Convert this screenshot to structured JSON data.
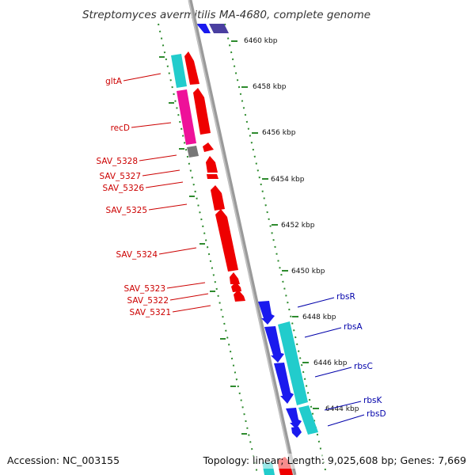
{
  "title": "Streptomyces avermitilis MA-4680, complete genome",
  "footer": {
    "accession": "Accession: NC_003155",
    "topology": "Topology: linear; Length: 9,025,608 bp; Genes: 7,669"
  },
  "colors": {
    "backbone": "#8c8c8c",
    "tick_green": "#2e8b2e",
    "red_gene": "#ee0000",
    "blue_gene": "#1a1aee",
    "cyan_gene": "#22cccc",
    "magenta_gene": "#ee1199",
    "grey_gene": "#777777",
    "red_label": "#cc0000",
    "blue_label": "#0000aa"
  },
  "kbp_ticks": [
    "6460 kbp",
    "6458 kbp",
    "6456 kbp",
    "6454 kbp",
    "6452 kbp",
    "6450 kbp",
    "6448 kbp",
    "6446 kbp",
    "6444 kbp"
  ],
  "left_labels": [
    "gltA",
    "recD",
    "SAV_5328",
    "SAV_5327",
    "SAV_5326",
    "SAV_5325",
    "SAV_5324",
    "SAV_5323",
    "SAV_5322",
    "SAV_5321"
  ],
  "right_labels": [
    "rbsR",
    "rbsA",
    "rbsC",
    "rbsK",
    "rbsD"
  ]
}
